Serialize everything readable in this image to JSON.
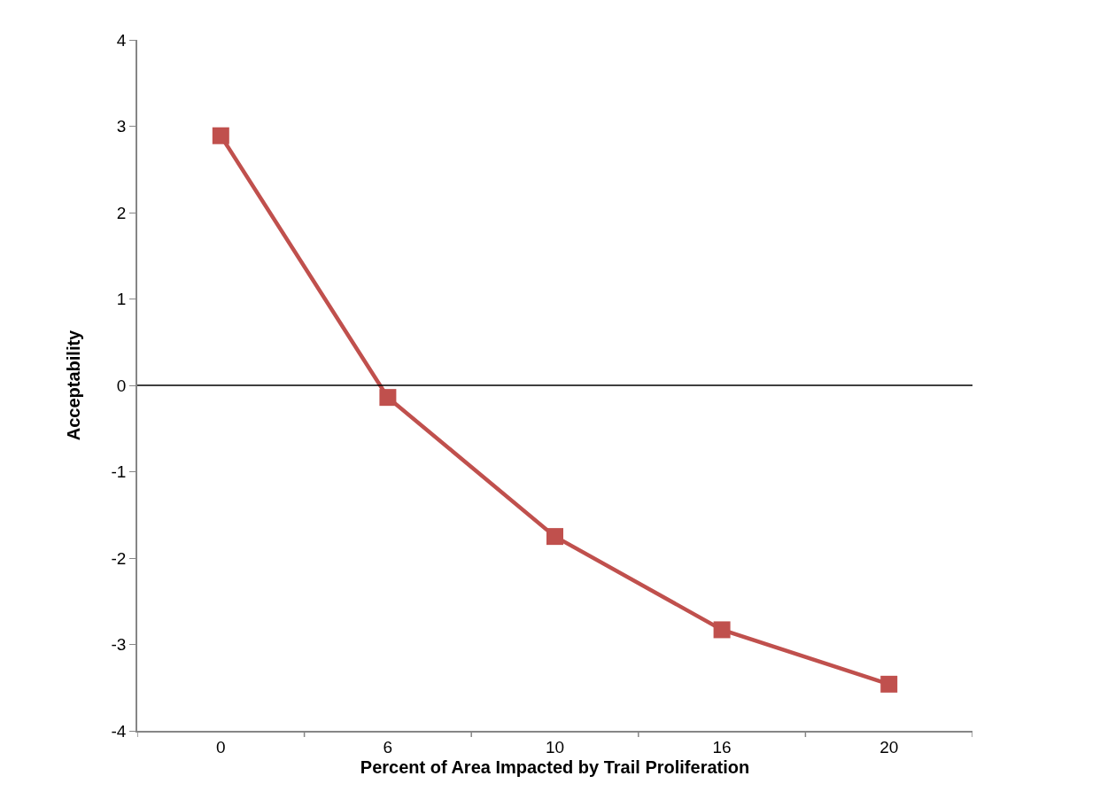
{
  "chart_data": {
    "type": "line",
    "xlabel": "Percent of Area Impacted by Trail Proliferation",
    "ylabel": "Acceptability",
    "categories": [
      "0",
      "6",
      "10",
      "16",
      "20"
    ],
    "series": [
      {
        "color": "#c0504d",
        "values": [
          2.89,
          -0.14,
          -1.75,
          -2.83,
          -3.46
        ]
      }
    ],
    "ylim": [
      -4,
      4
    ],
    "yticks": [
      -4,
      -3,
      -2,
      -1,
      0,
      1,
      2,
      3,
      4
    ],
    "ref_lines": [
      {
        "axis": "y",
        "value": 0,
        "color": "#000000"
      }
    ],
    "marker": "square",
    "line_style": "solid",
    "grid": false
  }
}
